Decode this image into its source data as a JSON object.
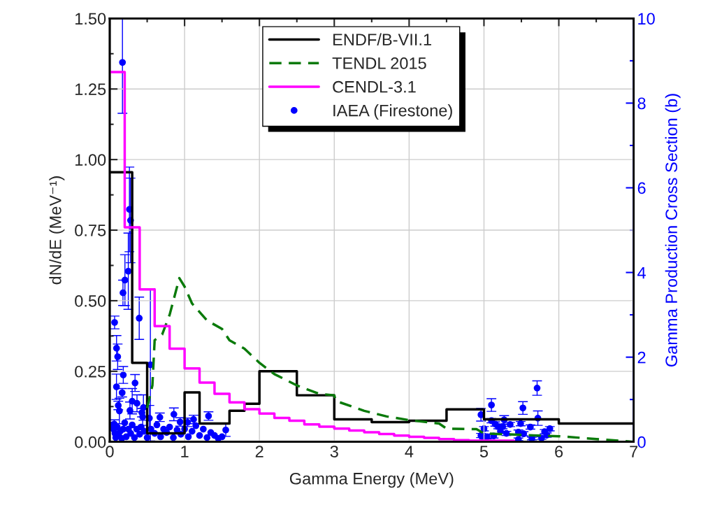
{
  "chart_data": {
    "type": "line",
    "xlabel": "Gamma Energy (MeV)",
    "ylabel": "dN/dE (MeV⁻¹)",
    "y2label": "Gamma Production Cross Section (b)",
    "xlim": [
      0,
      7
    ],
    "xticks": [
      0,
      1,
      2,
      3,
      4,
      5,
      6,
      7
    ],
    "ylim": [
      0,
      1.5
    ],
    "yticks": [
      {
        "value": 0,
        "label": "0.00"
      },
      0.25,
      {
        "value": 0.5,
        "label": "0.50"
      },
      0.75,
      {
        "value": 1,
        "label": "1.00"
      },
      1.25,
      {
        "value": 1.5,
        "label": "1.50"
      }
    ],
    "y2lim": [
      0,
      10
    ],
    "y2ticks": [
      0,
      2,
      4,
      6,
      8,
      10
    ],
    "grid": true,
    "legend": "top",
    "line_style": "solid",
    "series": [
      {
        "name": "ENDF/B-VII.1",
        "type": "step",
        "color": "#000000",
        "x": [
          0,
          0.3,
          0.5,
          1.0,
          1.2,
          1.6,
          1.8,
          2.0,
          2.5,
          3.0,
          3.5,
          4.0,
          4.5,
          5.0,
          6.0,
          7.0
        ],
        "values": [
          0.955,
          0.28,
          0.03,
          0.175,
          0.065,
          0.11,
          0.135,
          0.25,
          0.165,
          0.08,
          0.07,
          0.075,
          0.115,
          0.08,
          0.065,
          0.065
        ]
      },
      {
        "name": "TENDL 2015",
        "type": "line",
        "line_style": "dashed",
        "color": "#0a7a0a",
        "x": [
          0.5,
          0.57,
          0.6,
          0.7,
          0.8,
          0.93,
          1.0,
          1.1,
          1.3,
          1.5,
          1.6,
          1.8,
          2.0,
          2.2,
          2.5,
          2.8,
          3.0,
          3.02,
          3.4,
          3.7,
          4.0,
          4.4,
          4.5,
          4.9,
          5.0,
          5.75,
          6.0,
          7.0
        ],
        "values": [
          0.12,
          0.2,
          0.36,
          0.38,
          0.45,
          0.58,
          0.55,
          0.49,
          0.43,
          0.4,
          0.36,
          0.33,
          0.28,
          0.24,
          0.2,
          0.17,
          0.165,
          0.145,
          0.11,
          0.09,
          0.077,
          0.065,
          0.047,
          0.045,
          0.03,
          0.022,
          0.02,
          0.0
        ]
      },
      {
        "name": "CENDL-3.1",
        "type": "step",
        "color": "#ff00ff",
        "x": [
          0,
          0.2,
          0.4,
          0.6,
          0.8,
          1.0,
          1.2,
          1.4,
          1.6,
          1.8,
          2.0,
          2.2,
          2.4,
          2.6,
          2.8,
          3.0,
          3.2,
          3.4,
          3.6,
          3.8,
          4.0,
          4.2,
          4.4,
          4.6,
          4.8,
          5.4
        ],
        "values": [
          1.31,
          0.76,
          0.54,
          0.41,
          0.33,
          0.26,
          0.21,
          0.17,
          0.14,
          0.116,
          0.1,
          0.085,
          0.075,
          0.062,
          0.054,
          0.047,
          0.04,
          0.034,
          0.028,
          0.022,
          0.018,
          0.014,
          0.01,
          0.006,
          0.004,
          0.004
        ]
      },
      {
        "name": "IAEA (Firestone)",
        "type": "scatter",
        "axis": "y2",
        "marker": "circle",
        "color": "#0000ff",
        "x": [
          0.17,
          0.263,
          0.278,
          0.248,
          0.203,
          0.177,
          0.394,
          0.065,
          0.543,
          0.091,
          0.106,
          0.181,
          0.09,
          0.166,
          0.338,
          0.3,
          0.364,
          0.114,
          0.129,
          0.27,
          0.45,
          0.857,
          1.32,
          0.44,
          0.53,
          1.55,
          0.94,
          1.12,
          1.04,
          0.67,
          0.43,
          0.06,
          0.03,
          0.05,
          0.07,
          0.08,
          0.1,
          0.12,
          0.14,
          0.16,
          0.18,
          0.2,
          0.22,
          0.25,
          0.28,
          0.3,
          0.33,
          0.36,
          0.4,
          0.42,
          0.46,
          0.5,
          0.55,
          0.6,
          0.63,
          0.68,
          0.72,
          0.76,
          0.8,
          0.85,
          0.9,
          0.95,
          1.0,
          1.05,
          1.1,
          1.15,
          1.2,
          1.25,
          1.3,
          1.35,
          1.4,
          1.45,
          1.5,
          4.96,
          5.1,
          5.52,
          5.71,
          5.72,
          5.49,
          5.62,
          5.35,
          5.27,
          5.19,
          5.1,
          5.15,
          5.25,
          5.3,
          5.0,
          4.96,
          5.04,
          5.13,
          5.22,
          5.46,
          5.53,
          5.46,
          5.64,
          5.77,
          5.81,
          5.88,
          5.84,
          5.0
        ],
        "values": [
          8.96,
          5.49,
          5.23,
          4.03,
          3.82,
          3.52,
          2.92,
          2.82,
          1.82,
          2.21,
          2.01,
          1.58,
          1.3,
          1.16,
          1.39,
          0.96,
          0.91,
          0.86,
          0.73,
          0.74,
          0.81,
          0.65,
          0.61,
          0.59,
          0.56,
          0.28,
          0.47,
          0.53,
          0.46,
          0.58,
          0.69,
          0.42,
          0.4,
          0.3,
          0.2,
          0.1,
          0.35,
          0.15,
          0.25,
          0.08,
          0.3,
          0.45,
          0.12,
          0.3,
          0.2,
          0.4,
          0.1,
          0.3,
          0.18,
          0.35,
          0.25,
          0.1,
          0.3,
          0.2,
          0.4,
          0.12,
          0.3,
          0.22,
          0.35,
          0.1,
          0.28,
          0.18,
          0.3,
          0.12,
          0.25,
          0.38,
          0.15,
          0.3,
          0.1,
          0.22,
          0.15,
          0.08,
          0.12,
          0.64,
          0.87,
          0.8,
          1.27,
          0.56,
          0.43,
          0.35,
          0.41,
          0.52,
          0.36,
          0.5,
          0.42,
          0.36,
          0.2,
          0.31,
          0.15,
          0.12,
          0.14,
          0.25,
          0.23,
          0.19,
          0.06,
          0.08,
          0.09,
          0.24,
          0.31,
          0.16,
          0.04
        ],
        "errors": [
          [
            7.76,
            10
          ],
          1.0,
          1.0,
          0.9,
          0.6,
          0.3,
          0.5,
          0.15,
          1.8,
          0.3,
          0.3,
          0.2,
          0.3,
          0.1,
          0.2,
          0.3,
          0.2,
          0.1,
          0.3,
          0.2,
          0.3,
          0.15,
          0.1,
          0.2,
          0.3,
          0.15,
          0.1,
          0.1,
          0.1,
          0.1,
          0.1,
          0.1,
          null,
          null,
          null,
          null,
          null,
          null,
          null,
          null,
          null,
          null,
          null,
          null,
          null,
          null,
          null,
          null,
          null,
          null,
          null,
          null,
          null,
          null,
          null,
          null,
          null,
          null,
          null,
          null,
          null,
          null,
          null,
          null,
          null,
          null,
          null,
          null,
          null,
          null,
          null,
          null,
          null,
          0.15,
          0.15,
          0.15,
          0.17,
          0.17,
          0.05,
          0.05,
          0.05,
          0.1,
          0.05,
          0.05,
          0.05,
          0.05,
          0.05,
          0.05,
          0.05,
          0.05,
          0.05,
          0.05,
          0.05,
          0.05,
          0.03,
          0.03,
          0.03,
          0.05,
          0.05,
          0.05,
          0.03
        ]
      }
    ]
  }
}
